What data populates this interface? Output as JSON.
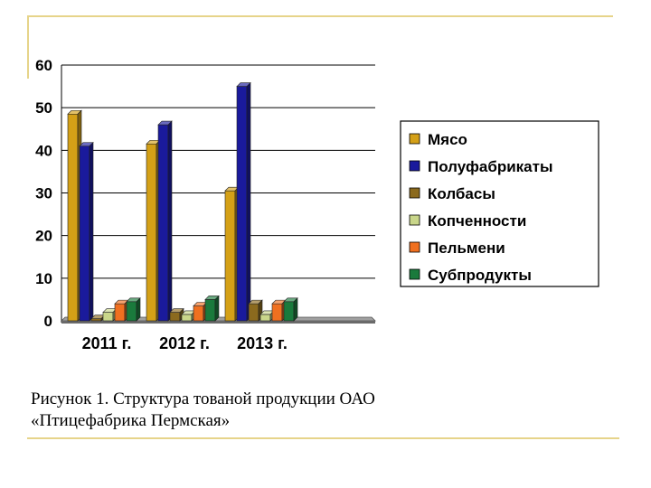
{
  "chart_data": {
    "type": "bar",
    "categories": [
      "2011 г.",
      "2012 г.",
      "2013 г."
    ],
    "series": [
      {
        "name": "Мясо",
        "values": [
          48.5,
          41.5,
          30.5
        ],
        "color": "#d4a017"
      },
      {
        "name": "Полуфабрикаты",
        "values": [
          41,
          46,
          55
        ],
        "color": "#1a1a9c"
      },
      {
        "name": "Колбасы",
        "values": [
          0.5,
          2,
          4
        ],
        "color": "#8b6a1e"
      },
      {
        "name": "Копченности",
        "values": [
          2,
          1.5,
          1.5
        ],
        "color": "#c9d68a"
      },
      {
        "name": "Пельмени",
        "values": [
          4,
          3.5,
          4
        ],
        "color": "#f07020"
      },
      {
        "name": "Субпродукты",
        "values": [
          4.5,
          5,
          4.5
        ],
        "color": "#1a7a3c"
      }
    ],
    "yticks": [
      "0",
      "10",
      "20",
      "30",
      "40",
      "50",
      "60"
    ],
    "ylim": [
      0,
      60
    ],
    "grid": true,
    "legend_position": "right"
  },
  "caption": {
    "line1": "Рисунок 1. Структура тованой продукции ОАО",
    "line2": "«Птицефабрика Пермская»"
  }
}
